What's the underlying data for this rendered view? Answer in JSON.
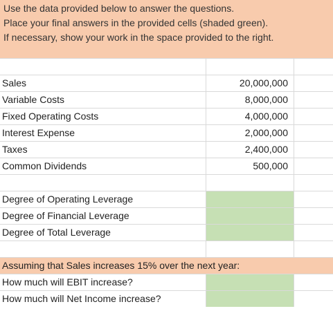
{
  "instructions": [
    "Use the data provided below to answer the questions.",
    "Place your final answers in the provided cells (shaded green).",
    "If necessary, show your work in the space provided to the right."
  ],
  "data_rows": [
    {
      "label": "Sales",
      "value": "20,000,000"
    },
    {
      "label": "Variable Costs",
      "value": "8,000,000"
    },
    {
      "label": "Fixed Operating Costs",
      "value": "4,000,000"
    },
    {
      "label": "Interest Expense",
      "value": "2,000,000"
    },
    {
      "label": "Taxes",
      "value": "2,400,000"
    },
    {
      "label": "Common Dividends",
      "value": "500,000"
    }
  ],
  "leverage_rows": [
    {
      "label": "Degree of Operating Leverage",
      "answer": ""
    },
    {
      "label": "Degree of Financial Leverage",
      "answer": ""
    },
    {
      "label": "Degree of Total Leverage",
      "answer": ""
    }
  ],
  "scenario": {
    "prompt": "Assuming that Sales increases 15% over the next year:",
    "questions": [
      {
        "label": "How much will EBIT increase?",
        "answer": ""
      },
      {
        "label": "How much will Net Income increase?",
        "answer": ""
      }
    ]
  },
  "colors": {
    "header_fill": "#f8cbad",
    "answer_fill": "#c6e0b4",
    "gridline": "#d9d9d9"
  }
}
